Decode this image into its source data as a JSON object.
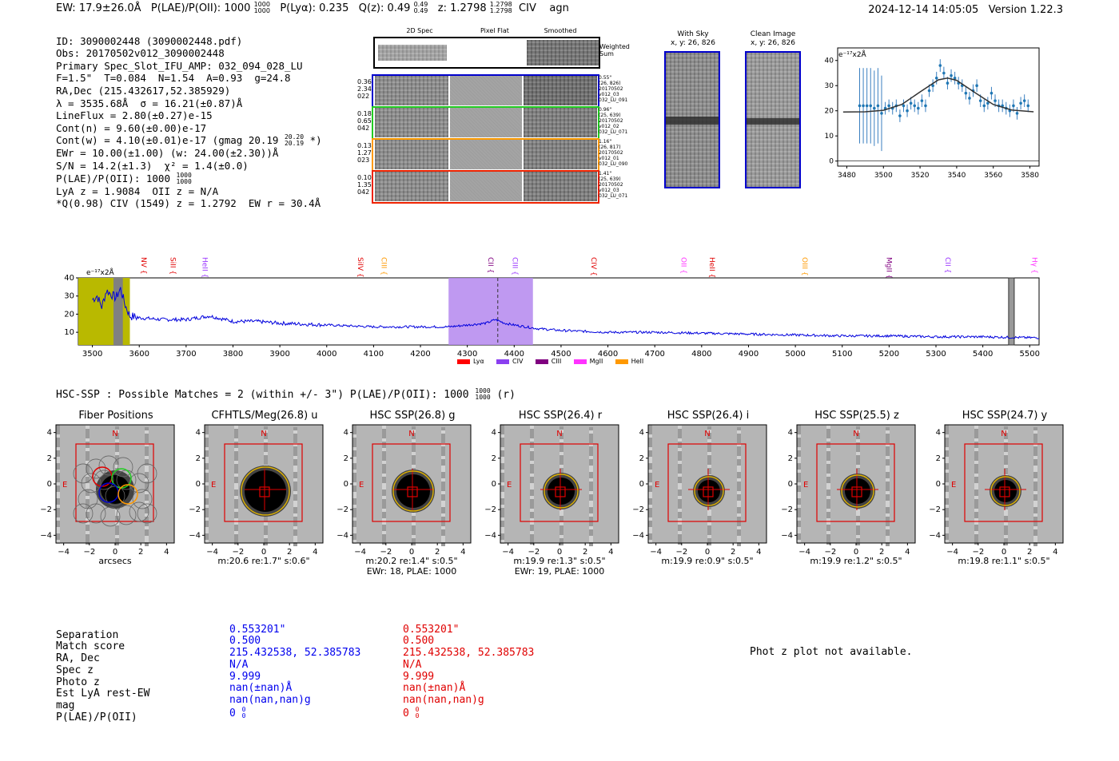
{
  "header": {
    "ew": "EW: 17.9±26.0Å",
    "plae_label": "P(LAE)/P(OII):",
    "plae_value": "1000",
    "plae_hi": "1000",
    "plae_lo": "1000",
    "plya_label": "P(Lyα): 0.235",
    "qz_label": "Q(z): 0.49",
    "qz_hi": "0.49",
    "qz_lo": "0.49",
    "z_label": "z: 1.2798",
    "z_hi": "1.2798",
    "z_lo": "1.2798",
    "line": "CIV",
    "class": "agn",
    "timestamp": "2024-12-14 14:05:05",
    "version": "Version 1.22.3"
  },
  "info": {
    "lines": [
      "ID: 3090002448 (3090002448.pdf)",
      "Obs: 20170502v012_3090002448",
      "Primary Spec_Slot_IFU_AMP: 032_094_028_LU",
      "F=1.5\"  T=0.084  N=1.54  A=0.93  g=24.8",
      "RA,Dec (215.432617,52.385929)",
      "λ = 3535.68Å  σ = 16.21(±0.87)Å",
      "LineFlux = 2.80(±0.27)e-15",
      "Cont(n) = 9.60(±0.00)e-17",
      "Cont(w) = 4.10(±0.01)e-17 (gmag 20.19",
      "EWr = 10.00(±1.00) (w: 24.00(±2.30))Å",
      "S/N = 14.2(±1.3)  χ² = 1.4(±0.0)",
      "P(LAE)/P(OII): 1000",
      "LyA z = 1.9084  OII z = N/A",
      "*Q(0.98) CIV (1549) z = 1.2792  EW r = 30.4Å"
    ],
    "gmag_hi": "20.20",
    "gmag_lo": "20.19",
    "gmag_tail": "*)",
    "plae_hi": "1000",
    "plae_lo": "1000"
  },
  "spec2d": {
    "col_headers": [
      "2D Spec",
      "Pixel Flat",
      "Smoothed"
    ],
    "weighted_sum_label": "Weighted Sum",
    "rows": [
      {
        "left": [
          "0.36",
          "2.34",
          "022"
        ],
        "right": [
          "0.55\"",
          "(26, 826)",
          "20170502",
          "v012_03",
          "032_LU_091"
        ],
        "color": "#0000cc"
      },
      {
        "left": [
          "0.18",
          "0.65",
          "042"
        ],
        "right": [
          "0.96\"",
          "(25, 639)",
          "20170502",
          "v012_02",
          "032_LU_071"
        ],
        "color": "#22cc22"
      },
      {
        "left": [
          "0.13",
          "1.27",
          "023"
        ],
        "right": [
          "1.16\"",
          "(26, 817)",
          "20170502",
          "v012_01",
          "032_LU_090"
        ],
        "color": "#ff9900"
      },
      {
        "left": [
          "0.10",
          "1.35",
          "042"
        ],
        "right": [
          "1.41\"",
          "(25, 639)",
          "20170502",
          "v012_03",
          "032_LU_071"
        ],
        "color": "#ee2200"
      }
    ]
  },
  "cutouts": {
    "with_sky_title": "With Sky",
    "with_sky_coords": "x, y: 26, 826",
    "clean_title": "Clean Image",
    "clean_coords": "x, y: 26, 826"
  },
  "zoom_chart": {
    "ylabel": "e⁻¹⁷x2Å",
    "x_ticks": [
      "3480",
      "3500",
      "3520",
      "3540",
      "3560",
      "3580"
    ],
    "y_ticks": [
      "0",
      "10",
      "20",
      "30",
      "40"
    ]
  },
  "full_spectrum": {
    "ylabel": "e⁻¹⁷x2Å",
    "x_ticks": [
      "3500",
      "3600",
      "3700",
      "3800",
      "3900",
      "4000",
      "4100",
      "4200",
      "4300",
      "4400",
      "4500",
      "4600",
      "4700",
      "4800",
      "4900",
      "5000",
      "5100",
      "5200",
      "5300",
      "5400",
      "5500"
    ],
    "y_ticks": [
      "10",
      "20",
      "30",
      "40"
    ],
    "lines": [
      {
        "name": "NV",
        "color": "#e00000"
      },
      {
        "name": "SiII",
        "color": "#e00000"
      },
      {
        "name": "HeII",
        "color": "#9933ff"
      },
      {
        "name": "SiIV",
        "color": "#e00000"
      },
      {
        "name": "CIII",
        "color": "#ff9900"
      },
      {
        "name": "CII",
        "color": "#800080"
      },
      {
        "name": "CIII",
        "color": "#9933ff"
      },
      {
        "name": "CIV",
        "color": "#e00000"
      },
      {
        "name": "OII",
        "color": "#ff33ff"
      },
      {
        "name": "HeII",
        "color": "#e00000"
      },
      {
        "name": "OIII",
        "color": "#ff9900"
      },
      {
        "name": "MgII",
        "color": "#800080"
      },
      {
        "name": "CII",
        "color": "#9933ff"
      },
      {
        "name": "Hγ",
        "color": "#ff33ff"
      }
    ],
    "legend": [
      {
        "label": "Lyα",
        "color": "#ff0000"
      },
      {
        "label": "CIV",
        "color": "#8a3ff0"
      },
      {
        "label": "CIII",
        "color": "#800080"
      },
      {
        "label": "MgII",
        "color": "#ff33ff"
      },
      {
        "label": "HeII",
        "color": "#ff9900"
      }
    ]
  },
  "hsc": {
    "summary": "HSC-SSP : Possible Matches = 2 (within +/- 3\")  P(LAE)/P(OII): 1000",
    "summary_hi": "1000",
    "summary_lo": "1000",
    "summary_tail": "(r)",
    "axis_ticks": [
      "−4",
      "−2",
      "0",
      "2",
      "4"
    ],
    "arcsec_label": "arcsecs",
    "north": "N",
    "east": "E",
    "panels": [
      {
        "title": "Fiber Positions",
        "cap1": "",
        "cap2": ""
      },
      {
        "title": "CFHTLS/Meg(26.8) u",
        "cap1": "m:20.6  re:1.7\"  s:0.6\"",
        "cap2": ""
      },
      {
        "title": "HSC SSP(26.8) g",
        "cap1": "m:20.2  re:1.4\"  s:0.5\"",
        "cap2": "EWr: 18, PLAE: 1000"
      },
      {
        "title": "HSC SSP(26.4) r",
        "cap1": "m:19.9  re:1.3\"  s:0.5\"",
        "cap2": "EWr: 19, PLAE: 1000"
      },
      {
        "title": "HSC SSP(26.4) i",
        "cap1": "m:19.9  re:0.9\"  s:0.5\"",
        "cap2": ""
      },
      {
        "title": "HSC SSP(25.5) z",
        "cap1": "m:19.9  re:1.2\"  s:0.5\"",
        "cap2": ""
      },
      {
        "title": "HSC SSP(24.7) y",
        "cap1": "m:19.8  re:1.1\"  s:0.5\"",
        "cap2": ""
      }
    ]
  },
  "match_table": {
    "labels": [
      "Separation",
      "Match score",
      "RA, Dec",
      "Spec z",
      "Photo z",
      "Est LyA rest-EW",
      "mag",
      "P(LAE)/P(OII)"
    ],
    "col1": [
      "0.553201\"",
      "0.500",
      "215.432538, 52.385783",
      "N/A",
      "9.999",
      "nan(±nan)Å",
      "nan(nan,nan)g",
      "0"
    ],
    "col2": [
      "0.553201\"",
      "0.500",
      "215.432538, 52.385783",
      "N/A",
      "9.999",
      "nan(±nan)Å",
      "nan(nan,nan)g",
      "0"
    ],
    "plae_sub_hi": "0",
    "plae_sub_lo": "0",
    "photz_note": "Phot z plot not available."
  },
  "chart_data": [
    {
      "type": "line",
      "title": "",
      "xlabel": "",
      "ylabel": "e⁻¹⁷x2Å",
      "xlim": [
        3475,
        3585
      ],
      "ylim": [
        -2,
        45
      ],
      "series": [
        {
          "name": "data",
          "x": [
            3487,
            3489,
            3491,
            3493,
            3495,
            3497,
            3499,
            3501,
            3503,
            3505,
            3507,
            3509,
            3511,
            3513,
            3515,
            3517,
            3519,
            3521,
            3523,
            3525,
            3527,
            3529,
            3531,
            3533,
            3535,
            3537,
            3539,
            3541,
            3543,
            3545,
            3547,
            3549,
            3551,
            3553,
            3555,
            3557,
            3559,
            3561,
            3563,
            3565,
            3567,
            3569,
            3571,
            3573,
            3575,
            3577,
            3579
          ],
          "y": [
            22,
            22,
            22,
            22,
            21,
            22,
            19,
            21,
            22,
            21,
            22,
            18,
            22,
            20,
            23,
            22,
            21,
            24,
            22,
            28,
            30,
            33,
            38,
            35,
            31,
            34,
            33,
            31,
            30,
            27,
            25,
            28,
            30,
            24,
            22,
            23,
            27,
            24,
            22,
            22,
            21,
            20,
            22,
            19,
            23,
            24,
            22
          ]
        },
        {
          "name": "fit",
          "x": [
            3478,
            3490,
            3500,
            3510,
            3520,
            3530,
            3535,
            3540,
            3550,
            3560,
            3570,
            3582
          ],
          "y": [
            19.5,
            19.6,
            20.2,
            22.5,
            27.5,
            32.3,
            33.0,
            32.1,
            27.2,
            22.5,
            20.3,
            19.6
          ]
        }
      ]
    },
    {
      "type": "line",
      "title": "",
      "xlabel": "",
      "ylabel": "e⁻¹⁷x2Å",
      "xlim": [
        3470,
        5520
      ],
      "ylim": [
        3,
        40
      ],
      "series": [
        {
          "name": "spectrum",
          "x": [
            3500,
            3510,
            3520,
            3530,
            3540,
            3550,
            3560,
            3570,
            3580,
            3600,
            3650,
            3700,
            3750,
            3800,
            3850,
            3900,
            4000,
            4100,
            4200,
            4260,
            4300,
            4340,
            4360,
            4380,
            4400,
            4450,
            4500,
            4600,
            4700,
            4800,
            4900,
            5000,
            5100,
            5200,
            5300,
            5400,
            5500
          ],
          "y": [
            28,
            30,
            24,
            33,
            31,
            29,
            34,
            25,
            19,
            18,
            17,
            17,
            19,
            16,
            16,
            15,
            14,
            13,
            13,
            13,
            14,
            15,
            17,
            15,
            14,
            12,
            11,
            10,
            10,
            9.5,
            9,
            8.5,
            8,
            8,
            7.5,
            7.5,
            7
          ]
        }
      ]
    }
  ]
}
